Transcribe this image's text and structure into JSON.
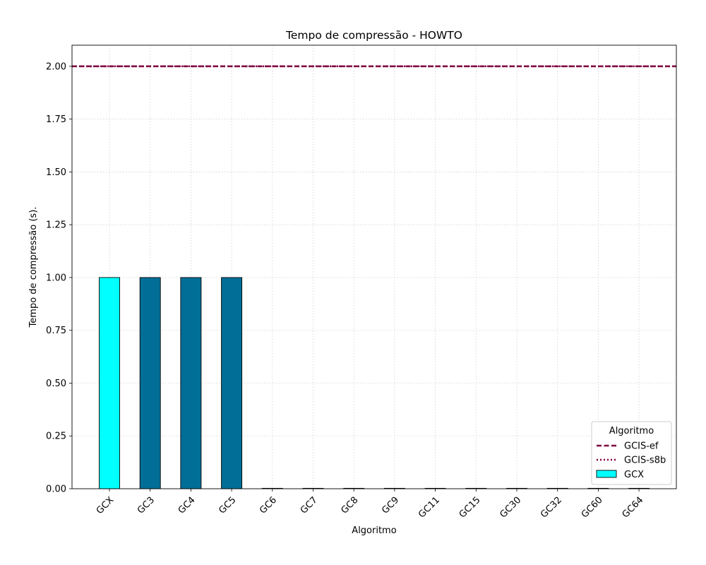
{
  "chart_data": {
    "type": "bar",
    "title": "Tempo de compressão -  HOWTO",
    "xlabel": "Algoritmo",
    "ylabel": "Tempo de compressão (s).",
    "categories": [
      "GCX",
      "GC3",
      "GC4",
      "GC5",
      "GC6",
      "GC7",
      "GC8",
      "GC9",
      "GC11",
      "GC15",
      "GC30",
      "GC32",
      "GC60",
      "GC64"
    ],
    "values": [
      1.0,
      1.0,
      1.0,
      1.0,
      0,
      0,
      0,
      0,
      0,
      0,
      0,
      0,
      0,
      0
    ],
    "bar_colors": [
      "#00ffff",
      "#006e96",
      "#006e96",
      "#006e96",
      "#006e96",
      "#006e96",
      "#006e96",
      "#006e96",
      "#006e96",
      "#006e96",
      "#006e96",
      "#006e96",
      "#006e96",
      "#006e96"
    ],
    "ylim": [
      0,
      2.1
    ],
    "yticks": [
      0.0,
      0.25,
      0.5,
      0.75,
      1.0,
      1.25,
      1.5,
      1.75,
      2.0
    ],
    "ytick_labels": [
      "0.00",
      "0.25",
      "0.50",
      "0.75",
      "1.00",
      "1.25",
      "1.50",
      "1.75",
      "2.00"
    ],
    "reference_lines": [
      {
        "name": "GCIS-ef",
        "value": 2.0,
        "color": "#800040",
        "style": "dashed"
      },
      {
        "name": "GCIS-s8b",
        "value": 2.0,
        "color": "#800040",
        "style": "dotted"
      }
    ],
    "grid": true,
    "legend": {
      "title": "Algoritmo",
      "placement": "lower-right",
      "entries": [
        {
          "label": "GCIS-ef",
          "kind": "dashed-line",
          "color": "#800040"
        },
        {
          "label": "GCIS-s8b",
          "kind": "dotted-line",
          "color": "#800040"
        },
        {
          "label": "GCX",
          "kind": "patch",
          "color": "#00ffff"
        }
      ]
    }
  }
}
